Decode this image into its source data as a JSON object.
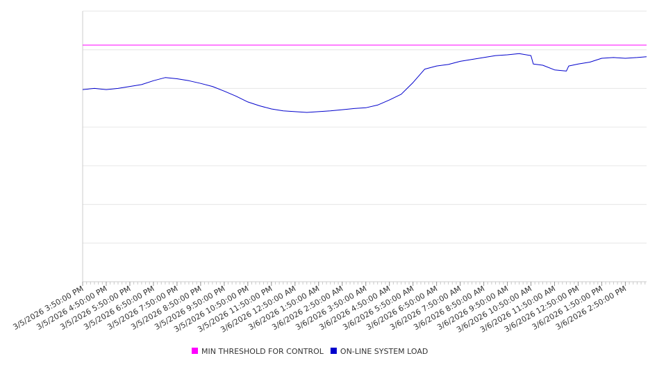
{
  "chart_data": {
    "type": "line",
    "title": "",
    "xlabel": "",
    "ylabel": "",
    "x_tick_labels": [
      "3/5/2026 3:50:00 PM",
      "3/5/2026 4:50:00 PM",
      "3/5/2026 5:50:00 PM",
      "3/5/2026 6:50:00 PM",
      "3/5/2026 7:50:00 PM",
      "3/5/2026 8:50:00 PM",
      "3/5/2026 9:50:00 PM",
      "3/5/2026 10:50:00 PM",
      "3/5/2026 11:50:00 PM",
      "3/6/2026 12:50:00 AM",
      "3/6/2026 1:50:00 AM",
      "3/6/2026 2:50:00 AM",
      "3/6/2026 3:50:00 AM",
      "3/6/2026 4:50:00 AM",
      "3/6/2026 5:50:00 AM",
      "3/6/2026 6:50:00 AM",
      "3/6/2026 7:50:00 AM",
      "3/6/2026 8:50:00 AM",
      "3/6/2026 9:50:00 AM",
      "3/6/2026 10:50:00 AM",
      "3/6/2026 11:50:00 AM",
      "3/6/2026 12:50:00 PM",
      "3/6/2026 1:50:00 PM",
      "3/6/2026 2:50:00 PM"
    ],
    "y_grid_lines": 7,
    "ylim": [
      0,
      7
    ],
    "grid": true,
    "legend_position": "bottom",
    "series": [
      {
        "name": "MIN THRESHOLD FOR CONTROL",
        "color": "#ff00ff",
        "x": [
          0,
          23.9
        ],
        "values": [
          6.12,
          6.12
        ]
      },
      {
        "name": "ON-LINE SYSTEM LOAD",
        "color": "#0000cc",
        "x": [
          0,
          0.5,
          1,
          1.5,
          2,
          2.5,
          3,
          3.5,
          4,
          4.5,
          5,
          5.5,
          6,
          6.5,
          7,
          7.5,
          8,
          8.5,
          9,
          9.5,
          10,
          10.5,
          11,
          11.5,
          12,
          12.5,
          13,
          13.5,
          14,
          14.5,
          15,
          15.5,
          16,
          16.5,
          17,
          17.5,
          18,
          18.5,
          19,
          19.1,
          19.5,
          20,
          20.5,
          20.6,
          21,
          21.5,
          22,
          22.5,
          23,
          23.5,
          23.9
        ],
        "values": [
          4.97,
          5.0,
          4.97,
          5.0,
          5.05,
          5.1,
          5.2,
          5.28,
          5.25,
          5.2,
          5.13,
          5.05,
          4.93,
          4.8,
          4.65,
          4.55,
          4.47,
          4.42,
          4.4,
          4.38,
          4.4,
          4.42,
          4.45,
          4.48,
          4.5,
          4.57,
          4.7,
          4.85,
          5.15,
          5.5,
          5.58,
          5.62,
          5.7,
          5.75,
          5.8,
          5.85,
          5.87,
          5.9,
          5.85,
          5.63,
          5.6,
          5.48,
          5.45,
          5.58,
          5.63,
          5.68,
          5.78,
          5.8,
          5.78,
          5.8,
          5.82
        ]
      }
    ]
  }
}
